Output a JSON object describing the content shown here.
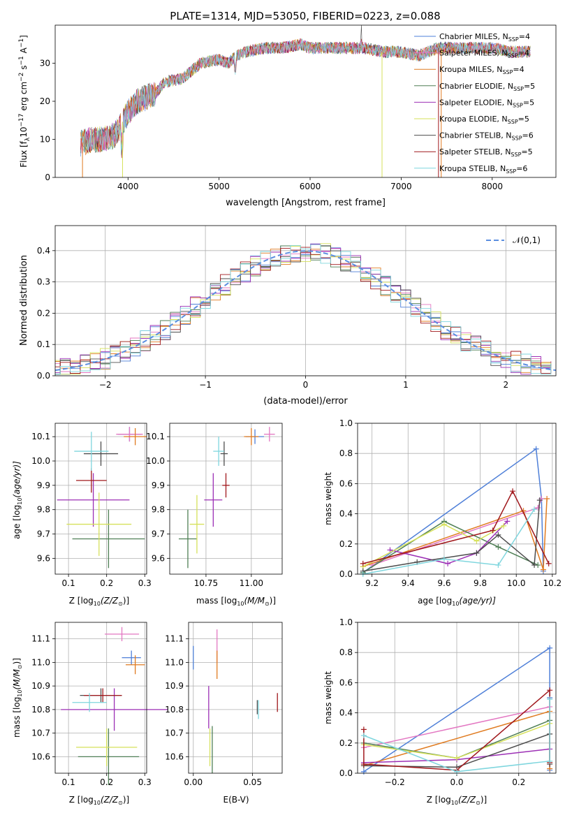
{
  "figure": {
    "title": "PLATE=1314, MJD=53050, FIBERID=0223, z=0.088"
  },
  "colors": {
    "series": [
      "#4e7fd8",
      "#e377c2",
      "#e07b20",
      "#4f7f55",
      "#9c2fb5",
      "#d6e15a",
      "#4d4d4d",
      "#a0181c",
      "#7fd6de"
    ],
    "grid": "#b0b0b0",
    "normal": "#5b8ee0"
  },
  "chart_data": [
    {
      "id": "spectrum",
      "type": "line",
      "xlabel": "wavelength [Angstrom, rest frame]",
      "ylabel": "Flux [f",
      "ylabel_parts": {
        "a": "Flux [f",
        "lambda": "λ",
        "b": "10",
        "e17": "−17",
        "c": " erg cm",
        "e2": "−2",
        "d": " s",
        "e1": "−1",
        "f": " A",
        "e1b": "−1",
        "g": "]"
      },
      "xlim": [
        3200,
        8700
      ],
      "ylim": [
        0,
        40
      ],
      "xticks": [
        4000,
        5000,
        6000,
        7000,
        8000
      ],
      "yticks": [
        0,
        10,
        20,
        30
      ],
      "continuum": [
        [
          3480,
          9
        ],
        [
          3600,
          10
        ],
        [
          3700,
          10
        ],
        [
          3850,
          11
        ],
        [
          3950,
          15
        ],
        [
          4000,
          17
        ],
        [
          4100,
          20
        ],
        [
          4200,
          21
        ],
        [
          4300,
          22
        ],
        [
          4400,
          25
        ],
        [
          4600,
          26
        ],
        [
          4800,
          30
        ],
        [
          5000,
          31
        ],
        [
          5100,
          30
        ],
        [
          5200,
          32
        ],
        [
          5300,
          33
        ],
        [
          5500,
          34
        ],
        [
          5700,
          34
        ],
        [
          5900,
          35
        ],
        [
          6000,
          34
        ],
        [
          6200,
          34
        ],
        [
          6400,
          34
        ],
        [
          6600,
          34
        ],
        [
          6800,
          33
        ],
        [
          7000,
          33
        ],
        [
          7200,
          32
        ],
        [
          7400,
          34
        ],
        [
          7600,
          34
        ],
        [
          7800,
          34
        ],
        [
          8000,
          34
        ],
        [
          8200,
          33
        ],
        [
          8400,
          33
        ]
      ],
      "legend": [
        {
          "label": "Chabrier MILES, N",
          "sub": "SSP",
          "n": "=4"
        },
        {
          "label": "Salpeter MILES, N",
          "sub": "SSP",
          "n": "=4"
        },
        {
          "label": "Kroupa MILES, N",
          "sub": "SSP",
          "n": "=4"
        },
        {
          "label": "Chabrier ELODIE, N",
          "sub": "SSP",
          "n": "=5"
        },
        {
          "label": "Salpeter ELODIE, N",
          "sub": "SSP",
          "n": "=5"
        },
        {
          "label": "Kroupa ELODIE, N",
          "sub": "SSP",
          "n": "=5"
        },
        {
          "label": "Chabrier STELIB, N",
          "sub": "SSP",
          "n": "=6"
        },
        {
          "label": "Salpeter STELIB, N",
          "sub": "SSP",
          "n": "=5"
        },
        {
          "label": "Kroupa STELIB, N",
          "sub": "SSP",
          "n": "=6"
        }
      ]
    },
    {
      "id": "residuals",
      "type": "histogram",
      "xlabel": "(data-model)/error",
      "ylabel": "Normed distribution",
      "xlim": [
        -2.5,
        2.5
      ],
      "ylim": [
        0,
        0.48
      ],
      "xticks": [
        -2,
        -1,
        0,
        1,
        2
      ],
      "yticks": [
        0.0,
        0.1,
        0.2,
        0.3,
        0.4
      ],
      "legend": "𝒩(0,1)",
      "bin_width": 0.1
    },
    {
      "id": "age_vs_Z",
      "type": "errorbar",
      "xlabel": "Z [log",
      "xlabel_math": "(Z/Z",
      "ylabel": "age  [log",
      "ylabel_math": "(age/yr)]",
      "xlim": [
        0.065,
        0.305
      ],
      "ylim": [
        9.535,
        10.155
      ],
      "xticks": [
        0.1,
        0.2,
        0.3
      ],
      "yticks": [
        9.6,
        9.7,
        9.8,
        9.9,
        10.0,
        10.1
      ],
      "points": [
        {
          "x": 0.26,
          "y": 10.11,
          "xerr": 0.03,
          "yerr": 0.03,
          "c": 0
        },
        {
          "x": 0.26,
          "y": 10.11,
          "xerr": 0.035,
          "yerr": 0.03,
          "c": 1
        },
        {
          "x": 0.275,
          "y": 10.1,
          "xerr": 0.03,
          "yerr": 0.035,
          "c": 2
        },
        {
          "x": 0.205,
          "y": 9.68,
          "xerr": 0.095,
          "yerr": 0.12,
          "c": 3
        },
        {
          "x": 0.165,
          "y": 9.84,
          "xerr": 0.095,
          "yerr": 0.11,
          "c": 4
        },
        {
          "x": 0.18,
          "y": 9.74,
          "xerr": 0.085,
          "yerr": 0.13,
          "c": 5
        },
        {
          "x": 0.185,
          "y": 10.03,
          "xerr": 0.045,
          "yerr": 0.05,
          "c": 6
        },
        {
          "x": 0.16,
          "y": 9.92,
          "xerr": 0.04,
          "yerr": 0.05,
          "c": 7
        },
        {
          "x": 0.16,
          "y": 10.04,
          "xerr": 0.045,
          "yerr": 0.08,
          "c": 8
        }
      ]
    },
    {
      "id": "age_vs_mass",
      "type": "errorbar",
      "xlabel": "mass [log",
      "xlabel_math": "(M/M",
      "xlim": [
        10.55,
        11.17
      ],
      "ylim": [
        9.535,
        10.155
      ],
      "xticks": [
        10.75,
        11.0
      ],
      "yticks": [
        9.6,
        9.7,
        9.8,
        9.9,
        10.0,
        10.1
      ],
      "points": [
        {
          "x": 11.02,
          "y": 10.1,
          "xerr": 0.05,
          "yerr": 0.03,
          "c": 0
        },
        {
          "x": 11.1,
          "y": 10.11,
          "xerr": 0.03,
          "yerr": 0.03,
          "c": 1
        },
        {
          "x": 11.0,
          "y": 10.1,
          "xerr": 0.04,
          "yerr": 0.035,
          "c": 2
        },
        {
          "x": 10.65,
          "y": 9.68,
          "xerr": 0.05,
          "yerr": 0.12,
          "c": 3
        },
        {
          "x": 10.79,
          "y": 9.84,
          "xerr": 0.05,
          "yerr": 0.11,
          "c": 4
        },
        {
          "x": 10.7,
          "y": 9.74,
          "xerr": 0.04,
          "yerr": 0.12,
          "c": 5
        },
        {
          "x": 10.85,
          "y": 10.03,
          "xerr": 0.02,
          "yerr": 0.05,
          "c": 6
        },
        {
          "x": 10.86,
          "y": 9.9,
          "xerr": 0.02,
          "yerr": 0.05,
          "c": 7
        },
        {
          "x": 10.82,
          "y": 10.04,
          "xerr": 0.03,
          "yerr": 0.06,
          "c": 8
        }
      ]
    },
    {
      "id": "weight_vs_age",
      "type": "line",
      "xlabel": "age  [log",
      "xlabel_math": "(age/yr)]",
      "ylabel": "mass weight",
      "xlim": [
        9.12,
        10.22
      ],
      "ylim": [
        0,
        1.0
      ],
      "xticks": [
        9.2,
        9.4,
        9.6,
        9.8,
        10.0,
        10.2
      ],
      "yticks": [
        0.0,
        0.2,
        0.4,
        0.6,
        0.8,
        1.0
      ],
      "series": [
        {
          "c": 0,
          "pts": [
            [
              9.15,
              0.01
            ],
            [
              10.11,
              0.83
            ],
            [
              10.14,
              0.5
            ],
            [
              10.15,
              0.02
            ]
          ]
        },
        {
          "c": 1,
          "pts": [
            [
              9.2,
              0.06
            ],
            [
              10.12,
              0.44
            ],
            [
              10.14,
              0.5
            ]
          ]
        },
        {
          "c": 2,
          "pts": [
            [
              9.15,
              0.05
            ],
            [
              10.04,
              0.42
            ],
            [
              10.15,
              0.03
            ],
            [
              10.17,
              0.5
            ]
          ]
        },
        {
          "c": 3,
          "pts": [
            [
              9.15,
              0.01
            ],
            [
              9.6,
              0.35
            ],
            [
              9.9,
              0.18
            ],
            [
              10.12,
              0.06
            ]
          ]
        },
        {
          "c": 4,
          "pts": [
            [
              9.3,
              0.16
            ],
            [
              9.62,
              0.07
            ],
            [
              9.78,
              0.14
            ],
            [
              9.95,
              0.35
            ]
          ]
        },
        {
          "c": 5,
          "pts": [
            [
              9.15,
              0.05
            ],
            [
              9.6,
              0.33
            ],
            [
              9.78,
              0.22
            ],
            [
              9.93,
              0.32
            ]
          ]
        },
        {
          "c": 6,
          "pts": [
            [
              9.15,
              0.02
            ],
            [
              9.45,
              0.08
            ],
            [
              9.78,
              0.14
            ],
            [
              9.9,
              0.26
            ],
            [
              10.1,
              0.06
            ],
            [
              10.13,
              0.49
            ]
          ]
        },
        {
          "c": 7,
          "pts": [
            [
              9.15,
              0.07
            ],
            [
              9.87,
              0.29
            ],
            [
              9.98,
              0.55
            ],
            [
              10.18,
              0.07
            ]
          ]
        },
        {
          "c": 8,
          "pts": [
            [
              9.15,
              0.0
            ],
            [
              9.6,
              0.1
            ],
            [
              9.9,
              0.06
            ],
            [
              10.1,
              0.43
            ]
          ]
        }
      ]
    },
    {
      "id": "mass_vs_Z",
      "type": "errorbar",
      "xlabel": "Z [log",
      "xlabel_math": "(Z/Z",
      "ylabel": "mass [log",
      "ylabel_math": "(M/M",
      "xlim": [
        0.065,
        0.305
      ],
      "ylim": [
        10.53,
        11.17
      ],
      "xticks": [
        0.1,
        0.2,
        0.3
      ],
      "yticks": [
        10.6,
        10.7,
        10.8,
        10.9,
        11.0,
        11.1
      ],
      "points": [
        {
          "x": 0.265,
          "y": 11.02,
          "xerr": 0.025,
          "yerr": 0.03,
          "c": 0
        },
        {
          "x": 0.24,
          "y": 11.12,
          "xerr": 0.045,
          "yerr": 0.03,
          "c": 1
        },
        {
          "x": 0.275,
          "y": 10.99,
          "xerr": 0.025,
          "yerr": 0.04,
          "c": 2
        },
        {
          "x": 0.205,
          "y": 10.6,
          "xerr": 0.08,
          "yerr": 0.12,
          "c": 3
        },
        {
          "x": 0.22,
          "y": 10.8,
          "xerr": 0.14,
          "yerr": 0.09,
          "c": 4
        },
        {
          "x": 0.2,
          "y": 10.64,
          "xerr": 0.08,
          "yerr": 0.08,
          "c": 5
        },
        {
          "x": 0.185,
          "y": 10.86,
          "xerr": 0.055,
          "yerr": 0.03,
          "c": 6
        },
        {
          "x": 0.19,
          "y": 10.86,
          "xerr": 0.05,
          "yerr": 0.03,
          "c": 7
        },
        {
          "x": 0.155,
          "y": 10.83,
          "xerr": 0.045,
          "yerr": 0.04,
          "c": 8
        }
      ]
    },
    {
      "id": "mass_vs_EBV",
      "type": "errorbar",
      "xlabel": "E(B-V)",
      "xlim": [
        -0.004,
        0.075
      ],
      "ylim": [
        10.53,
        11.17
      ],
      "xticks": [
        0.0,
        0.05
      ],
      "yticks": [
        10.6,
        10.7,
        10.8,
        10.9,
        11.0,
        11.1
      ],
      "points": [
        {
          "x": 0.0,
          "y": 11.02,
          "xerr": 0.0,
          "yerr": 0.05,
          "c": 0
        },
        {
          "x": 0.02,
          "y": 11.07,
          "xerr": 0.0,
          "yerr": 0.07,
          "c": 1
        },
        {
          "x": 0.02,
          "y": 10.99,
          "xerr": 0.0,
          "yerr": 0.06,
          "c": 2
        },
        {
          "x": 0.016,
          "y": 10.63,
          "xerr": 0.0,
          "yerr": 0.1,
          "c": 3
        },
        {
          "x": 0.013,
          "y": 10.81,
          "xerr": 0.0,
          "yerr": 0.09,
          "c": 4
        },
        {
          "x": 0.014,
          "y": 10.64,
          "xerr": 0.0,
          "yerr": 0.08,
          "c": 5
        },
        {
          "x": 0.054,
          "y": 10.81,
          "xerr": 0.0,
          "yerr": 0.03,
          "c": 6
        },
        {
          "x": 0.071,
          "y": 10.83,
          "xerr": 0.0,
          "yerr": 0.04,
          "c": 7
        },
        {
          "x": 0.055,
          "y": 10.8,
          "xerr": 0.0,
          "yerr": 0.04,
          "c": 8
        }
      ]
    },
    {
      "id": "weight_vs_Z",
      "type": "line",
      "xlabel": "Z [log",
      "xlabel_math": "(Z/Z",
      "ylabel": "mass weight",
      "xlim": [
        -0.32,
        0.32
      ],
      "ylim": [
        0,
        1.0
      ],
      "xticks": [
        -0.2,
        0.0,
        0.2
      ],
      "yticks": [
        0.0,
        0.2,
        0.4,
        0.6,
        0.8,
        1.0
      ],
      "series": [
        {
          "c": 0,
          "pts": [
            [
              -0.3,
              0.01
            ],
            [
              0.3,
              0.83
            ],
            [
              0.3,
              0.5
            ],
            [
              0.3,
              0.02
            ]
          ]
        },
        {
          "c": 1,
          "pts": [
            [
              -0.3,
              0.17
            ],
            [
              0.3,
              0.44
            ]
          ]
        },
        {
          "c": 2,
          "pts": [
            [
              -0.3,
              0.05
            ],
            [
              0.3,
              0.41
            ],
            [
              0.3,
              0.03
            ]
          ]
        },
        {
          "c": 3,
          "pts": [
            [
              -0.3,
              0.2
            ],
            [
              0.0,
              0.1
            ],
            [
              0.3,
              0.35
            ]
          ]
        },
        {
          "c": 4,
          "pts": [
            [
              -0.3,
              0.07
            ],
            [
              0.0,
              0.09
            ],
            [
              0.3,
              0.16
            ]
          ]
        },
        {
          "c": 5,
          "pts": [
            [
              -0.3,
              0.19
            ],
            [
              0.0,
              0.1
            ],
            [
              0.3,
              0.33
            ]
          ]
        },
        {
          "c": 6,
          "pts": [
            [
              -0.3,
              0.05
            ],
            [
              0.0,
              0.04
            ],
            [
              0.3,
              0.26
            ],
            [
              0.3,
              0.06
            ]
          ]
        },
        {
          "c": 7,
          "pts": [
            [
              -0.3,
              0.29
            ],
            [
              -0.3,
              0.06
            ],
            [
              0.0,
              0.02
            ],
            [
              0.3,
              0.55
            ],
            [
              0.3,
              0.07
            ]
          ]
        },
        {
          "c": 8,
          "pts": [
            [
              -0.3,
              0.25
            ],
            [
              0.0,
              0.01
            ],
            [
              0.3,
              0.08
            ],
            [
              0.3,
              0.49
            ]
          ]
        }
      ]
    }
  ]
}
